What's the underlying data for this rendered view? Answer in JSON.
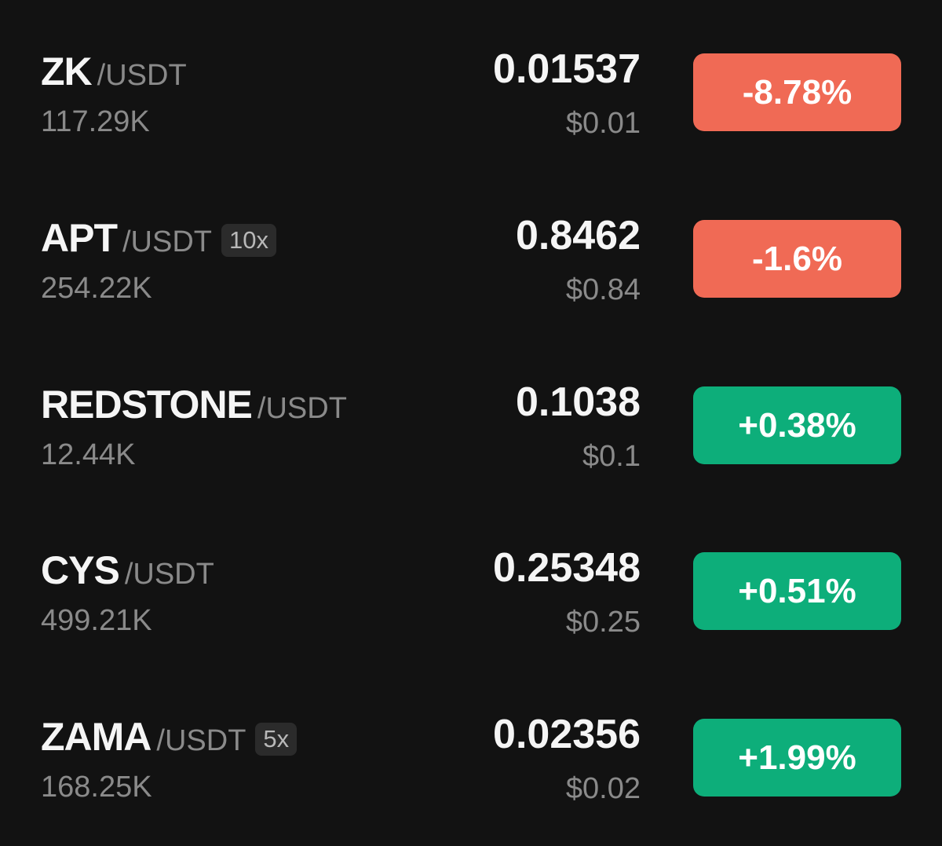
{
  "colors": {
    "background": "#121212",
    "down": "#f06a55",
    "up": "#0dae7a",
    "muted_text": "#8a8a8a"
  },
  "rows": [
    {
      "base": "ZK",
      "quote": "/USDT",
      "leverage": "",
      "volume": "117.29K",
      "price": "0.01537",
      "usd_price": "$0.01",
      "change": "-8.78%",
      "direction": "down"
    },
    {
      "base": "APT",
      "quote": "/USDT",
      "leverage": "10x",
      "volume": "254.22K",
      "price": "0.8462",
      "usd_price": "$0.84",
      "change": "-1.6%",
      "direction": "down"
    },
    {
      "base": "REDSTONE",
      "quote": "/USDT",
      "leverage": "",
      "volume": "12.44K",
      "price": "0.1038",
      "usd_price": "$0.1",
      "change": "+0.38%",
      "direction": "up"
    },
    {
      "base": "CYS",
      "quote": "/USDT",
      "leverage": "",
      "volume": "499.21K",
      "price": "0.25348",
      "usd_price": "$0.25",
      "change": "+0.51%",
      "direction": "up"
    },
    {
      "base": "ZAMA",
      "quote": "/USDT",
      "leverage": "5x",
      "volume": "168.25K",
      "price": "0.02356",
      "usd_price": "$0.02",
      "change": "+1.99%",
      "direction": "up"
    }
  ]
}
